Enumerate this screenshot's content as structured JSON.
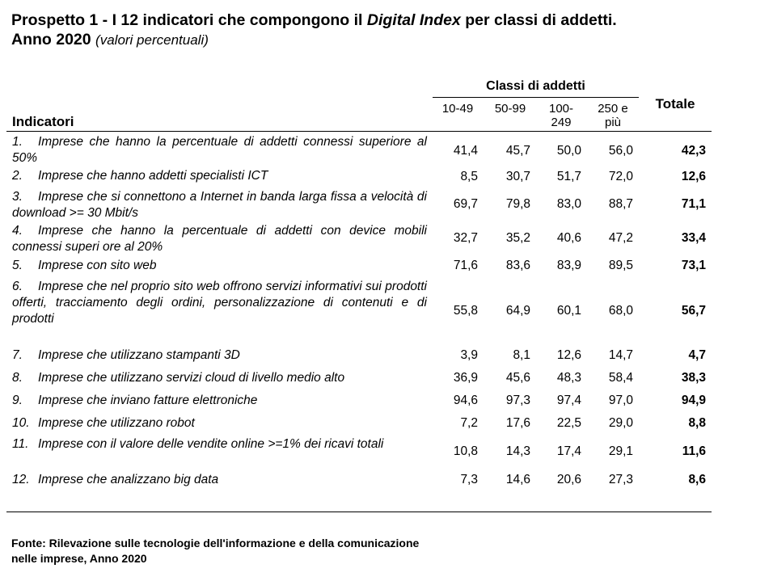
{
  "title": {
    "prefix": "Prospetto 1 - I 12 indicatori che compongono il ",
    "emph": "Digital Index",
    "suffix": " per classi di addetti.",
    "line2": "Anno 2020",
    "unit": "(valori percentuali)"
  },
  "header": {
    "indicatori": "Indicatori",
    "group": "Classi di addetti",
    "cols": [
      "10-49",
      "50-99",
      "100-\n249",
      "250 e\npiù"
    ],
    "totale": "Totale"
  },
  "rows": [
    {
      "num": "1.",
      "text": "Imprese che hanno la percentuale di addetti connessi superiore al 50%",
      "values": [
        "41,4",
        "45,7",
        "50,0",
        "56,0"
      ],
      "total": "42,3"
    },
    {
      "num": "2.",
      "text": "Imprese che hanno addetti specialisti ICT",
      "values": [
        "8,5",
        "30,7",
        "51,7",
        "72,0"
      ],
      "total": "12,6"
    },
    {
      "num": "3.",
      "text": "Imprese che si connettono a Internet in banda larga fissa a velocità di download >= 30 Mbit/s",
      "values": [
        "69,7",
        "79,8",
        "83,0",
        "88,7"
      ],
      "total": "71,1"
    },
    {
      "num": "4.",
      "text": "Imprese che hanno la percentuale di addetti con device mobili connessi superi ore al 20%",
      "values": [
        "32,7",
        "35,2",
        "40,6",
        "47,2"
      ],
      "total": "33,4"
    },
    {
      "num": "5.",
      "text": "Imprese con sito web",
      "values": [
        "71,6",
        "83,6",
        "83,9",
        "89,5"
      ],
      "total": "73,1"
    },
    {
      "num": "6.",
      "text": "Imprese che nel proprio sito web offrono servizi informativi sui prodotti offerti, tracciamento degli ordini, personalizzazione di contenuti e di prodotti",
      "values": [
        "55,8",
        "64,9",
        "60,1",
        "68,0"
      ],
      "total": "56,7"
    },
    {
      "num": "7.",
      "text": "Imprese che utilizzano stampanti 3D",
      "values": [
        "3,9",
        "8,1",
        "12,6",
        "14,7"
      ],
      "total": "4,7"
    },
    {
      "num": "8.",
      "text": "Imprese che utilizzano servizi cloud di livello medio alto",
      "values": [
        "36,9",
        "45,6",
        "48,3",
        "58,4"
      ],
      "total": "38,3"
    },
    {
      "num": "9.",
      "text": "Imprese che inviano fatture elettroniche",
      "values": [
        "94,6",
        "97,3",
        "97,4",
        "97,0"
      ],
      "total": "94,9"
    },
    {
      "num": "10.",
      "text": "Imprese che utilizzano robot",
      "values": [
        "7,2",
        "17,6",
        "22,5",
        "29,0"
      ],
      "total": "8,8"
    },
    {
      "num": "11.",
      "text": "Imprese con il valore delle vendite online >=1% dei ricavi totali",
      "values": [
        "10,8",
        "14,3",
        "17,4",
        "29,1"
      ],
      "total": "11,6"
    },
    {
      "num": "12.",
      "text": "Imprese che analizzano big data",
      "values": [
        "7,3",
        "14,6",
        "20,6",
        "27,3"
      ],
      "total": "8,6"
    }
  ],
  "source": "Fonte: Rilevazione sulle tecnologie dell'informazione e della comunicazione nelle imprese, Anno 2020"
}
